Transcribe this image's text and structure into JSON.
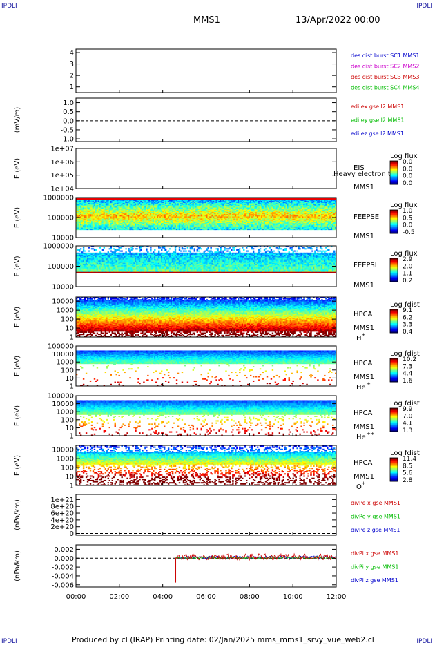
{
  "corners": {
    "tl": "IPDLI",
    "tr": "IPDLI",
    "bl": "IPDLI",
    "br": "IPDLI"
  },
  "header": {
    "mission": "MMS1",
    "datetime": "13/Apr/2022 00:00"
  },
  "footer": "Produced by cl (IRAP)   Printing date: 02/Jan/2025   mms_mms1_srvy_vue_web2.cl",
  "colors": {
    "blue": "#0000cc",
    "magenta": "#cc00cc",
    "red": "#cc0000",
    "green": "#00bb00"
  },
  "chart_data": [
    {
      "type": "line",
      "name": "SC location",
      "yticks": [
        "1",
        "2",
        "3",
        "4"
      ],
      "ylim": [
        0.5,
        4.3
      ],
      "legend": [
        {
          "text": "des dist burst SC1 MMS1",
          "color": "#0000cc"
        },
        {
          "text": "des dist burst SC2 MMS2",
          "color": "#cc00cc"
        },
        {
          "text": "des dist burst SC3 MMS3",
          "color": "#cc0000"
        },
        {
          "text": "des dist burst SC4 MMS4",
          "color": "#00bb00"
        }
      ]
    },
    {
      "type": "line",
      "ylabel": "(mV/m)",
      "yticks": [
        "1.0",
        "0.5",
        "0.0",
        "-0.5",
        "-1.0"
      ],
      "ylim": [
        -1.15,
        1.25
      ],
      "dashed_zero": true,
      "legend": [
        {
          "text": "edi ex gse l2 MMS1",
          "color": "#cc0000"
        },
        {
          "text": "edi ey gse l2 MMS1",
          "color": "#00bb00"
        },
        {
          "text": "edi ez gse l2 MMS1",
          "color": "#0000cc"
        }
      ]
    },
    {
      "type": "heatmap",
      "ylabel": "E (eV)",
      "yticks": [
        "1e+07",
        "1e+06",
        "1e+05",
        "1e+04"
      ],
      "log": true,
      "ylim": [
        10000,
        10000000
      ],
      "instrument": [
        "EIS",
        "MMS1"
      ],
      "note": "Heavy electron to",
      "colorbar": {
        "label": "Log flux",
        "ticks": [
          "0.0",
          "0.0",
          "0.0",
          "0.0"
        ]
      },
      "filled": false
    },
    {
      "type": "heatmap",
      "ylabel": "E (eV)",
      "yticks": [
        "1000000",
        "100000",
        "10000"
      ],
      "log": true,
      "ylim": [
        10000,
        1000000
      ],
      "instrument": [
        "FEEPSE",
        "MMS1"
      ],
      "colorbar": {
        "label": "Log flux",
        "ticks": [
          "1.0",
          "0.5",
          "0.0",
          "-0.5"
        ]
      },
      "filled": true
    },
    {
      "type": "heatmap",
      "ylabel": "E (eV)",
      "yticks": [
        "1000000",
        "100000",
        "10000"
      ],
      "log": true,
      "ylim": [
        10000,
        1000000
      ],
      "instrument": [
        "FEEPSI",
        "MMS1"
      ],
      "colorbar": {
        "label": "Log flux",
        "ticks": [
          "2.9",
          "2.0",
          "1.1",
          "0.2"
        ]
      },
      "filled": true
    },
    {
      "type": "heatmap",
      "ylabel": "E (eV)",
      "yticks": [
        "10000",
        "1000",
        "100",
        "10",
        "1"
      ],
      "log": true,
      "ylim": [
        1,
        30000
      ],
      "instrument": [
        "HPCA",
        "MMS1"
      ],
      "species": "H",
      "species_charge": "+",
      "colorbar": {
        "label": "Log fdist",
        "ticks": [
          "9.1",
          "6.2",
          "3.3",
          "0.4"
        ]
      },
      "filled": true
    },
    {
      "type": "heatmap",
      "ylabel": "E (eV)",
      "yticks": [
        "100000",
        "10000",
        "1000",
        "100",
        "10",
        "1"
      ],
      "log": true,
      "ylim": [
        1,
        100000
      ],
      "instrument": [
        "HPCA",
        "MMS1"
      ],
      "species": "He",
      "species_charge": "+",
      "colorbar": {
        "label": "Log fdist",
        "ticks": [
          "10.2",
          "7.3",
          "4.4",
          "1.6"
        ]
      },
      "filled": true
    },
    {
      "type": "heatmap",
      "ylabel": "E (eV)",
      "yticks": [
        "100000",
        "10000",
        "1000",
        "100",
        "10",
        "1"
      ],
      "log": true,
      "ylim": [
        1,
        100000
      ],
      "instrument": [
        "HPCA",
        "MMS1"
      ],
      "species": "He",
      "species_charge": "++",
      "colorbar": {
        "label": "Log fdist",
        "ticks": [
          "9.9",
          "7.0",
          "4.1",
          "1.3"
        ]
      },
      "filled": true
    },
    {
      "type": "heatmap",
      "ylabel": "E (eV)",
      "yticks": [
        "10000",
        "1000",
        "100",
        "10",
        "1"
      ],
      "log": true,
      "ylim": [
        1,
        30000
      ],
      "instrument": [
        "HPCA",
        "MMS1"
      ],
      "species": "O",
      "species_charge": "+",
      "colorbar": {
        "label": "Log fdist",
        "ticks": [
          "11.4",
          "8.5",
          "5.6",
          "2.8"
        ]
      },
      "filled": true
    },
    {
      "type": "line",
      "ylabel": "(nPa/km)",
      "yticks": [
        "1e+21",
        "8e+20",
        "6e+20",
        "4e+20",
        "2e+20",
        "0"
      ],
      "ylim": [
        -5e+19,
        1.15e+21
      ],
      "dashed_zero": true,
      "legend": [
        {
          "text": "divPe x gse MMS1",
          "color": "#cc0000"
        },
        {
          "text": "divPe y gse MMS1",
          "color": "#00bb00"
        },
        {
          "text": "divPe z gse MMS1",
          "color": "#0000cc"
        }
      ]
    },
    {
      "type": "line",
      "ylabel": "(nPa/km)",
      "yticks": [
        "0.002",
        "0.000",
        "-0.002",
        "-0.004",
        "-0.006"
      ],
      "ylim": [
        -0.0065,
        0.003
      ],
      "dashed_zero": true,
      "data_start_hour": 4.6,
      "legend": [
        {
          "text": "divPi x gse MMS1",
          "color": "#cc0000"
        },
        {
          "text": "divPi y gse MMS1",
          "color": "#00bb00"
        },
        {
          "text": "divPi z gse MMS1",
          "color": "#0000cc"
        }
      ]
    }
  ],
  "xaxis": {
    "ticks": [
      "00:00",
      "02:00",
      "04:00",
      "06:00",
      "08:00",
      "10:00",
      "12:00"
    ],
    "range_hours": [
      0,
      12
    ]
  }
}
